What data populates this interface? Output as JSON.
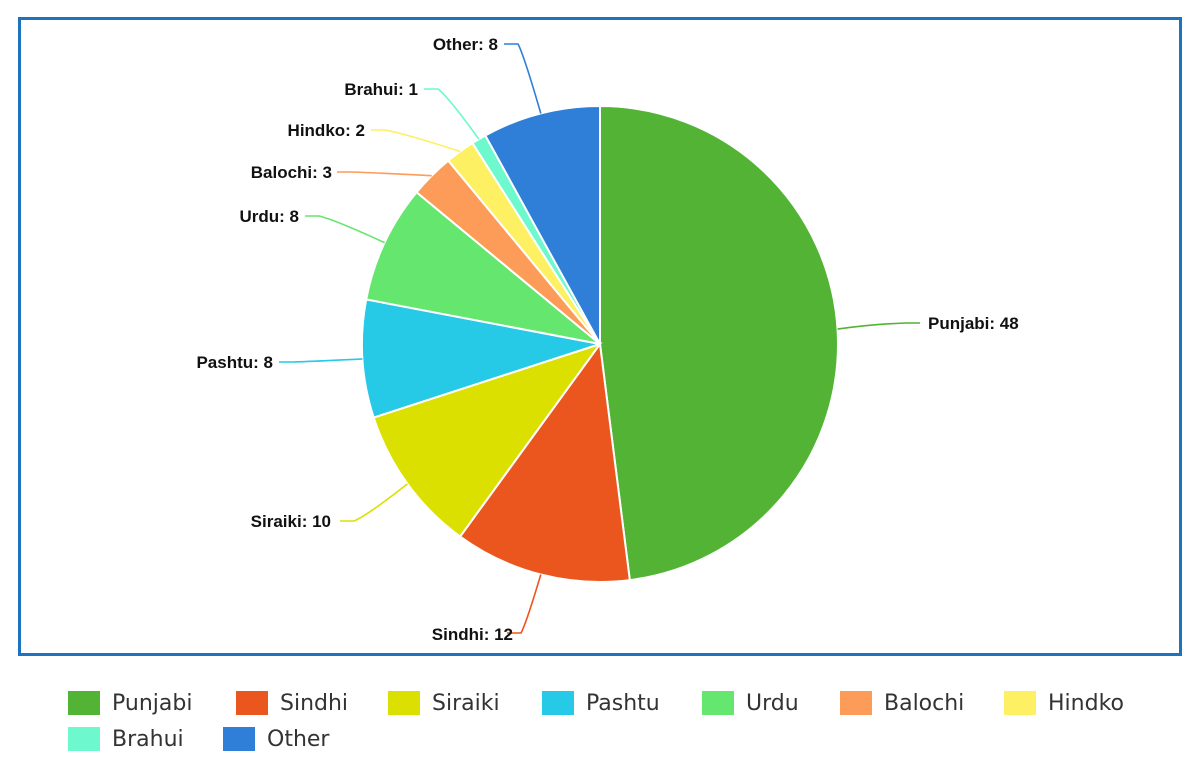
{
  "chart_data": {
    "type": "pie",
    "title": "",
    "categories": [
      "Punjabi",
      "Sindhi",
      "Siraiki",
      "Pashtu",
      "Urdu",
      "Balochi",
      "Hindko",
      "Brahui",
      "Other"
    ],
    "values": [
      48,
      12,
      10,
      8,
      8,
      3,
      2,
      1,
      8
    ],
    "colors": [
      "#52b335",
      "#eb561e",
      "#dbe000",
      "#26c9e6",
      "#65e66f",
      "#fd9b59",
      "#fdf062",
      "#6df8cd",
      "#2f7ed8"
    ],
    "data_labels": [
      "Punjabi: 48",
      "Sindhi: 12",
      "Siraiki: 10",
      "Pashtu: 8",
      "Urdu: 8",
      "Balochi: 3",
      "Hindko: 2",
      "Brahui: 1",
      "Other: 8"
    ],
    "start_angle": "top, clockwise",
    "legend_position": "bottom"
  },
  "legend": {
    "items": [
      {
        "label": "Punjabi",
        "color": "#52b335"
      },
      {
        "label": "Sindhi",
        "color": "#eb561e"
      },
      {
        "label": "Siraiki",
        "color": "#dbe000"
      },
      {
        "label": "Pashtu",
        "color": "#26c9e6"
      },
      {
        "label": "Urdu",
        "color": "#65e66f"
      },
      {
        "label": "Balochi",
        "color": "#fd9b59"
      },
      {
        "label": "Hindko",
        "color": "#fdf062"
      },
      {
        "label": "Brahui",
        "color": "#6df8cd"
      },
      {
        "label": "Other",
        "color": "#2f7ed8"
      }
    ]
  },
  "frame": {
    "border_color": "#1e73be"
  }
}
